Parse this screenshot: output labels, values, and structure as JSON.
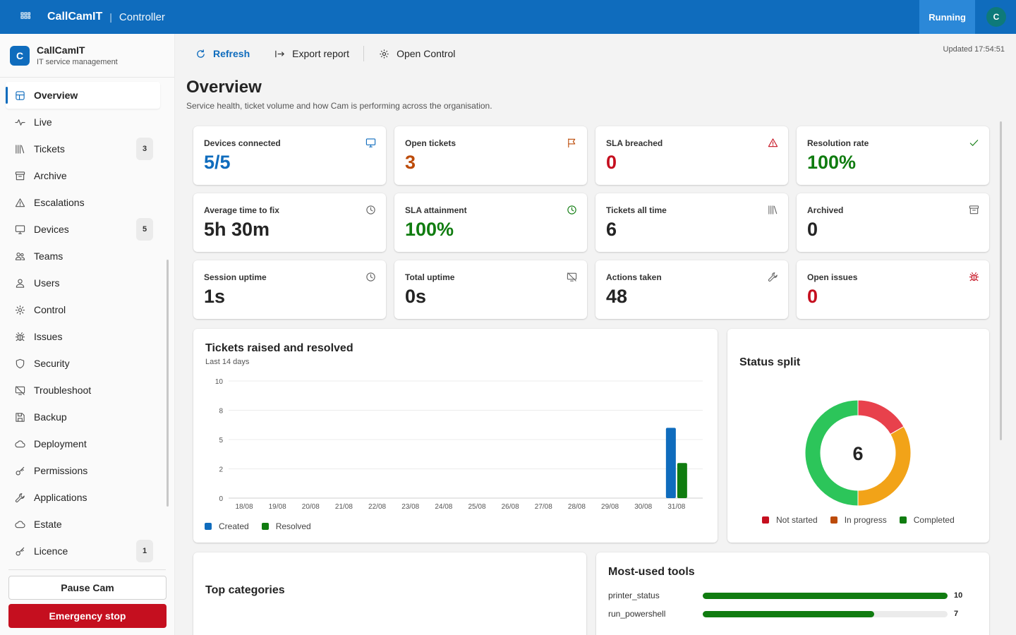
{
  "topbar": {
    "app_name": "CallCamIT",
    "separator": "|",
    "app_sub": "Controller",
    "status": "Running",
    "avatar_initial": "C"
  },
  "sidebar": {
    "brand_initial": "C",
    "brand_name": "CallCamIT",
    "brand_sub": "IT service management",
    "items": [
      {
        "label": "Overview",
        "icon": "dashboard-icon",
        "badge": ""
      },
      {
        "label": "Live",
        "icon": "pulse-icon",
        "badge": ""
      },
      {
        "label": "Tickets",
        "icon": "library-icon",
        "badge": "3"
      },
      {
        "label": "Archive",
        "icon": "archive-icon",
        "badge": ""
      },
      {
        "label": "Escalations",
        "icon": "warning-icon",
        "badge": ""
      },
      {
        "label": "Devices",
        "icon": "desktop-icon",
        "badge": "5"
      },
      {
        "label": "Teams",
        "icon": "people-icon",
        "badge": ""
      },
      {
        "label": "Users",
        "icon": "person-icon",
        "badge": ""
      },
      {
        "label": "Control",
        "icon": "gear-icon",
        "badge": ""
      },
      {
        "label": "Issues",
        "icon": "bug-icon",
        "badge": ""
      },
      {
        "label": "Security",
        "icon": "shield-icon",
        "badge": ""
      },
      {
        "label": "Troubleshoot",
        "icon": "screen-off-icon",
        "badge": ""
      },
      {
        "label": "Backup",
        "icon": "save-icon",
        "badge": ""
      },
      {
        "label": "Deployment",
        "icon": "cloud-icon",
        "badge": ""
      },
      {
        "label": "Permissions",
        "icon": "key-icon",
        "badge": ""
      },
      {
        "label": "Applications",
        "icon": "wrench-icon",
        "badge": ""
      },
      {
        "label": "Estate",
        "icon": "cloud-icon",
        "badge": ""
      },
      {
        "label": "Licence",
        "icon": "key-icon",
        "badge": "1"
      }
    ],
    "pause_label": "Pause Cam",
    "stop_label": "Emergency stop"
  },
  "toolbar": {
    "refresh_label": "Refresh",
    "export_label": "Export report",
    "control_label": "Open Control",
    "updated": "Updated 17:54:51"
  },
  "page": {
    "title": "Overview",
    "subtitle": "Service health, ticket volume and how Cam is performing across the organisation."
  },
  "stats": [
    {
      "label": "Devices connected",
      "value": "5/5",
      "icon": "desktop-icon",
      "color": "#0f6cbd"
    },
    {
      "label": "Open tickets",
      "value": "3",
      "icon": "flag-icon",
      "color": "#bc4b09"
    },
    {
      "label": "SLA breached",
      "value": "0",
      "icon": "warning-icon",
      "color": "#c50f1f"
    },
    {
      "label": "Resolution rate",
      "value": "100%",
      "icon": "checkmark-icon",
      "color": "#107c10"
    },
    {
      "label": "Average time to fix",
      "value": "5h 30m",
      "icon": "clock-icon",
      "color": "#242424"
    },
    {
      "label": "SLA attainment",
      "value": "100%",
      "icon": "clock-icon",
      "color": "#107c10"
    },
    {
      "label": "Tickets all time",
      "value": "6",
      "icon": "library-icon",
      "color": "#242424"
    },
    {
      "label": "Archived",
      "value": "0",
      "icon": "archive-icon",
      "color": "#242424"
    },
    {
      "label": "Session uptime",
      "value": "1s",
      "icon": "clock-icon",
      "color": "#242424"
    },
    {
      "label": "Total uptime",
      "value": "0s",
      "icon": "screen-off-icon",
      "color": "#242424"
    },
    {
      "label": "Actions taken",
      "value": "48",
      "icon": "wrench-icon",
      "color": "#242424"
    },
    {
      "label": "Open issues",
      "value": "0",
      "icon": "bug-icon",
      "color": "#c50f1f"
    }
  ],
  "tickets_chart": {
    "title": "Tickets raised and resolved",
    "subtitle": "Last 14 days"
  },
  "status_split": {
    "title": "Status split",
    "center_value": "6"
  },
  "top_categories": {
    "title": "Top categories"
  },
  "tools": {
    "title": "Most-used tools",
    "max": 10,
    "items": [
      {
        "name": "printer_status",
        "value": 10
      },
      {
        "name": "run_powershell",
        "value": 7
      }
    ]
  },
  "chart_data": [
    {
      "type": "bar",
      "title": "Tickets raised and resolved",
      "subtitle": "Last 14 days",
      "categories": [
        "18/08",
        "19/08",
        "20/08",
        "21/08",
        "22/08",
        "23/08",
        "24/08",
        "25/08",
        "26/08",
        "27/08",
        "28/08",
        "29/08",
        "30/08",
        "31/08"
      ],
      "series": [
        {
          "name": "Created",
          "color": "#0f6cbd",
          "values": [
            0,
            0,
            0,
            0,
            0,
            0,
            0,
            0,
            0,
            0,
            0,
            0,
            0,
            6
          ]
        },
        {
          "name": "Resolved",
          "color": "#107c10",
          "values": [
            0,
            0,
            0,
            0,
            0,
            0,
            0,
            0,
            0,
            0,
            0,
            0,
            0,
            3
          ]
        }
      ],
      "yticks": [
        "10",
        "8",
        "5",
        "2",
        "0"
      ],
      "ylim": [
        0,
        10
      ],
      "grid": true,
      "legend": "bottom-left"
    },
    {
      "type": "pie",
      "title": "Status split",
      "center_label": "6",
      "slices": [
        {
          "name": "Not started",
          "value": 1,
          "color": "#e8414c",
          "legend_color": "#c50f1f"
        },
        {
          "name": "In progress",
          "value": 2,
          "color": "#f2a318",
          "legend_color": "#bc4b09"
        },
        {
          "name": "Completed",
          "value": 3,
          "color": "#2cc55a",
          "legend_color": "#107c10"
        }
      ],
      "legend": "bottom"
    }
  ]
}
